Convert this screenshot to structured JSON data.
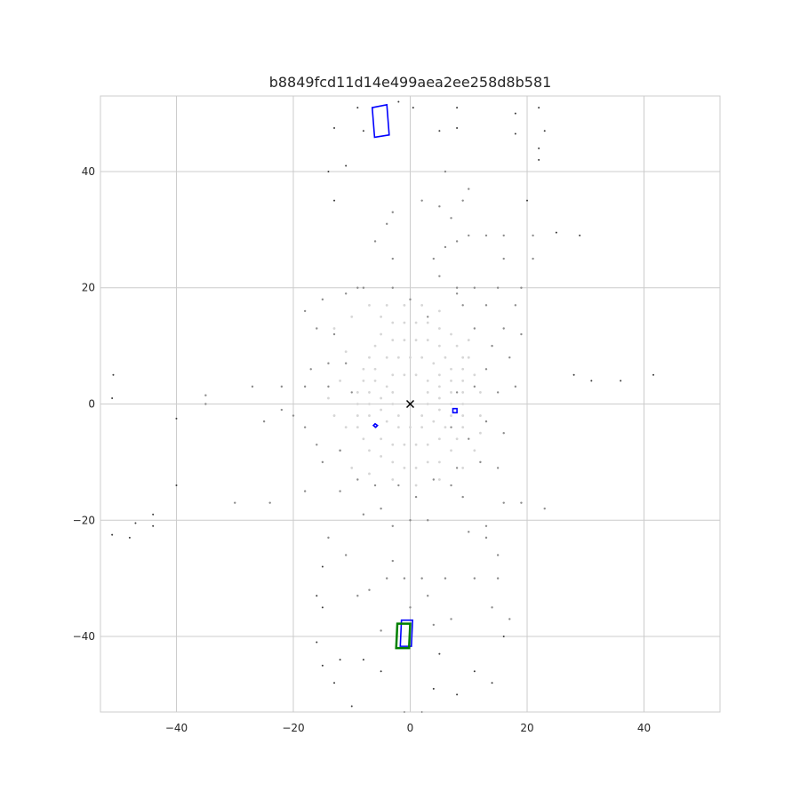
{
  "chart_data": {
    "type": "scatter",
    "title": "b8849fcd11d14e499aea2ee258d8b581",
    "xlabel": "",
    "ylabel": "",
    "xlim": [
      -53,
      53
    ],
    "ylim": [
      -53,
      53
    ],
    "x_ticks": [
      -40,
      -20,
      0,
      20,
      40
    ],
    "y_ticks": [
      40,
      20,
      0,
      -20,
      -40
    ],
    "x_tick_labels": [
      "−40",
      "−20",
      "0",
      "20",
      "40"
    ],
    "y_tick_labels": [
      "40",
      "20",
      "0",
      "−20",
      "−40"
    ],
    "grid": true,
    "colors": {
      "grid": "#cccccc",
      "points_far": "#3a3a3a",
      "points_mid": "#8c8c8c",
      "points_near": "#d6d6d6",
      "box_blue": "#0000ff",
      "box_green": "#008000",
      "ego_marker": "#000000"
    },
    "ego_marker": {
      "x": 0,
      "y": 0,
      "symbol": "x"
    },
    "boxes": [
      {
        "name": "box-top-left",
        "color": "blue",
        "corners": [
          [
            -6.5,
            51
          ],
          [
            -4,
            51.5
          ],
          [
            -3.6,
            46.3
          ],
          [
            -6.1,
            45.9
          ]
        ]
      },
      {
        "name": "box-right-small",
        "color": "blue",
        "corners": [
          [
            7.3,
            -0.8
          ],
          [
            8,
            -0.8
          ],
          [
            8,
            -1.5
          ],
          [
            7.3,
            -1.5
          ]
        ]
      },
      {
        "name": "box-left-small",
        "color": "blue",
        "corners": [
          [
            -6,
            -3.4
          ],
          [
            -5.6,
            -3.7
          ],
          [
            -5.9,
            -4
          ],
          [
            -6.3,
            -3.7
          ]
        ]
      },
      {
        "name": "box-bottom-blue",
        "color": "blue",
        "corners": [
          [
            -1.5,
            -37.2
          ],
          [
            0.4,
            -37.2
          ],
          [
            0.2,
            -41.7
          ],
          [
            -1.7,
            -41.7
          ]
        ]
      },
      {
        "name": "box-bottom-green",
        "color": "green",
        "corners": [
          [
            -2.2,
            -37.8
          ],
          [
            0,
            -37.8
          ],
          [
            -0.2,
            -42
          ],
          [
            -2.4,
            -42
          ]
        ]
      }
    ],
    "point_clusters": {
      "far": [
        [
          -50.8,
          5
        ],
        [
          -51,
          1
        ],
        [
          -51,
          -22.5
        ],
        [
          -48,
          -23
        ],
        [
          -44,
          -19
        ],
        [
          -44,
          -21
        ],
        [
          -40,
          -14
        ],
        [
          -40,
          -2.5
        ],
        [
          -47,
          -20.5
        ],
        [
          -13,
          47.5
        ],
        [
          -11,
          41
        ],
        [
          -14,
          40
        ],
        [
          -13,
          35
        ],
        [
          -9,
          51
        ],
        [
          -8,
          47
        ],
        [
          -2,
          52
        ],
        [
          0.5,
          51
        ],
        [
          8,
          51
        ],
        [
          5,
          47
        ],
        [
          8,
          47.5
        ],
        [
          18,
          50
        ],
        [
          18,
          46.5
        ],
        [
          22,
          51
        ],
        [
          23,
          47
        ],
        [
          22,
          44
        ],
        [
          22,
          42
        ],
        [
          20,
          35
        ],
        [
          25,
          29.5
        ],
        [
          29,
          29
        ],
        [
          31,
          4
        ],
        [
          36,
          4
        ],
        [
          41.6,
          5
        ],
        [
          28,
          5
        ],
        [
          -15,
          -28
        ],
        [
          -15,
          -35
        ],
        [
          -15,
          -45
        ],
        [
          -16,
          -33
        ],
        [
          -13,
          -48
        ],
        [
          -10,
          -52
        ],
        [
          -8,
          -44
        ],
        [
          -5,
          -46
        ],
        [
          -1,
          -53
        ],
        [
          4,
          -49
        ],
        [
          8,
          -50
        ],
        [
          14,
          -48
        ],
        [
          16,
          -40
        ],
        [
          11,
          -46
        ],
        [
          5,
          -43
        ],
        [
          2,
          -53
        ],
        [
          -16,
          -41
        ],
        [
          -12,
          -44
        ]
      ],
      "mid": [
        [
          -35,
          1.5
        ],
        [
          -35,
          0
        ],
        [
          -27,
          3
        ],
        [
          -22,
          3
        ],
        [
          -30,
          -17
        ],
        [
          -24,
          -17
        ],
        [
          -18,
          -15
        ],
        [
          -12,
          -15
        ],
        [
          -15,
          -10
        ],
        [
          -14,
          -23
        ],
        [
          -11,
          -26
        ],
        [
          -8,
          -19
        ],
        [
          -5,
          -18
        ],
        [
          -3,
          -21
        ],
        [
          0,
          -20
        ],
        [
          3,
          -20
        ],
        [
          9,
          -16
        ],
        [
          13,
          -23
        ],
        [
          16,
          -17
        ],
        [
          19,
          -17
        ],
        [
          23,
          -18
        ],
        [
          10,
          -22
        ],
        [
          15,
          -26
        ],
        [
          15,
          -30
        ],
        [
          11,
          -30
        ],
        [
          6,
          -30
        ],
        [
          3,
          -33
        ],
        [
          0,
          -35
        ],
        [
          -4,
          -30
        ],
        [
          -7,
          -32
        ],
        [
          -5,
          -39
        ],
        [
          -9,
          -33
        ],
        [
          4,
          -38
        ],
        [
          7,
          -37
        ],
        [
          13,
          -21
        ],
        [
          15,
          -11
        ],
        [
          16,
          -5
        ],
        [
          13,
          -3
        ],
        [
          15,
          2
        ],
        [
          18,
          3
        ],
        [
          17,
          8
        ],
        [
          19,
          12
        ],
        [
          18,
          17
        ],
        [
          19,
          20
        ],
        [
          15,
          20
        ],
        [
          11,
          20
        ],
        [
          8,
          20
        ],
        [
          5,
          22
        ],
        [
          4,
          25
        ],
        [
          6,
          27
        ],
        [
          8,
          28
        ],
        [
          10,
          29
        ],
        [
          13,
          29
        ],
        [
          16,
          29
        ],
        [
          16,
          25
        ],
        [
          21,
          25
        ],
        [
          21,
          29
        ],
        [
          7,
          32
        ],
        [
          9,
          35
        ],
        [
          5,
          34
        ],
        [
          10,
          37
        ],
        [
          6,
          40
        ],
        [
          2,
          35
        ],
        [
          -3,
          33
        ],
        [
          -4,
          31
        ],
        [
          -6,
          28
        ],
        [
          -3,
          25
        ],
        [
          -8,
          20
        ],
        [
          -11,
          19
        ],
        [
          -15,
          18
        ],
        [
          -18,
          16
        ],
        [
          -16,
          13
        ],
        [
          -13,
          12
        ],
        [
          -17,
          6
        ],
        [
          -14,
          7
        ],
        [
          -11,
          7
        ],
        [
          -10,
          2
        ],
        [
          -14,
          3
        ],
        [
          -18,
          3
        ],
        [
          -9,
          20
        ],
        [
          -3,
          20
        ],
        [
          0,
          18
        ],
        [
          3,
          15
        ],
        [
          8,
          19
        ],
        [
          9,
          17
        ],
        [
          13,
          17
        ],
        [
          11,
          13
        ],
        [
          14,
          10
        ],
        [
          16,
          13
        ],
        [
          13,
          6
        ],
        [
          11,
          3
        ],
        [
          8,
          2
        ],
        [
          7,
          -4
        ],
        [
          10,
          -6
        ],
        [
          12,
          -10
        ],
        [
          8,
          -11
        ],
        [
          7,
          -14
        ],
        [
          4,
          -13
        ],
        [
          1,
          -16
        ],
        [
          -2,
          -14
        ],
        [
          -6,
          -14
        ],
        [
          -9,
          -13
        ],
        [
          -12,
          -8
        ],
        [
          -16,
          -7
        ],
        [
          -18,
          -4
        ],
        [
          -20,
          -2
        ],
        [
          -22,
          -1
        ],
        [
          -25,
          -3
        ],
        [
          -3,
          -27
        ],
        [
          -1,
          -30
        ],
        [
          2,
          -30
        ],
        [
          14,
          -35
        ],
        [
          17,
          -37
        ]
      ],
      "near": [
        [
          -5,
          15
        ],
        [
          -3,
          14
        ],
        [
          -1,
          14
        ],
        [
          1,
          14
        ],
        [
          3,
          14
        ],
        [
          5,
          13
        ],
        [
          7,
          12
        ],
        [
          8,
          10
        ],
        [
          9,
          8
        ],
        [
          9,
          6
        ],
        [
          9,
          4
        ],
        [
          9,
          2
        ],
        [
          9,
          0
        ],
        [
          9,
          -2
        ],
        [
          9,
          -4
        ],
        [
          8,
          -6
        ],
        [
          7,
          -8
        ],
        [
          5,
          -10
        ],
        [
          3,
          -10
        ],
        [
          1,
          -11
        ],
        [
          -1,
          -11
        ],
        [
          -3,
          -10
        ],
        [
          -5,
          -9
        ],
        [
          -7,
          -8
        ],
        [
          -8,
          -6
        ],
        [
          -9,
          -4
        ],
        [
          -9,
          -2
        ],
        [
          -9,
          0
        ],
        [
          -9,
          2
        ],
        [
          -8,
          4
        ],
        [
          -8,
          6
        ],
        [
          -7,
          8
        ],
        [
          -6,
          10
        ],
        [
          -5,
          12
        ],
        [
          -3,
          11
        ],
        [
          -1,
          11
        ],
        [
          1,
          11
        ],
        [
          3,
          11
        ],
        [
          5,
          10
        ],
        [
          6,
          8
        ],
        [
          7,
          6
        ],
        [
          7,
          4
        ],
        [
          7,
          2
        ],
        [
          7,
          0
        ],
        [
          7,
          -2
        ],
        [
          6,
          -4
        ],
        [
          5,
          -6
        ],
        [
          3,
          -7
        ],
        [
          1,
          -7
        ],
        [
          -1,
          -7
        ],
        [
          -3,
          -7
        ],
        [
          -5,
          -6
        ],
        [
          -6,
          -4
        ],
        [
          -7,
          -2
        ],
        [
          -7,
          0
        ],
        [
          -7,
          2
        ],
        [
          -6,
          4
        ],
        [
          -6,
          6
        ],
        [
          -4,
          8
        ],
        [
          -2,
          8
        ],
        [
          0,
          8
        ],
        [
          2,
          8
        ],
        [
          4,
          7
        ],
        [
          5,
          5
        ],
        [
          5,
          3
        ],
        [
          5,
          1
        ],
        [
          5,
          -1
        ],
        [
          4,
          -3
        ],
        [
          2,
          -4
        ],
        [
          0,
          -4
        ],
        [
          -2,
          -4
        ],
        [
          -4,
          -3
        ],
        [
          -5,
          -1
        ],
        [
          -5,
          1
        ],
        [
          -4,
          3
        ],
        [
          -3,
          5
        ],
        [
          -1,
          5
        ],
        [
          1,
          5
        ],
        [
          3,
          4
        ],
        [
          3,
          2
        ],
        [
          3,
          0
        ],
        [
          2,
          -2
        ],
        [
          -2,
          -2
        ],
        [
          -3,
          0
        ],
        [
          -3,
          2
        ],
        [
          -11,
          -4
        ],
        [
          -13,
          -2
        ],
        [
          -14,
          1
        ],
        [
          -12,
          4
        ],
        [
          -11,
          9
        ],
        [
          -13,
          13
        ],
        [
          -10,
          15
        ],
        [
          -7,
          17
        ],
        [
          -4,
          17
        ],
        [
          -1,
          17
        ],
        [
          2,
          17
        ],
        [
          5,
          16
        ],
        [
          -12,
          -8
        ],
        [
          -10,
          -11
        ],
        [
          -7,
          -12
        ],
        [
          -3,
          -13
        ],
        [
          1,
          -14
        ],
        [
          5,
          -13
        ],
        [
          9,
          -11
        ],
        [
          11,
          -8
        ],
        [
          12,
          -5
        ],
        [
          12,
          -2
        ],
        [
          12,
          2
        ],
        [
          11,
          5
        ],
        [
          10,
          8
        ],
        [
          10,
          11
        ]
      ]
    }
  }
}
